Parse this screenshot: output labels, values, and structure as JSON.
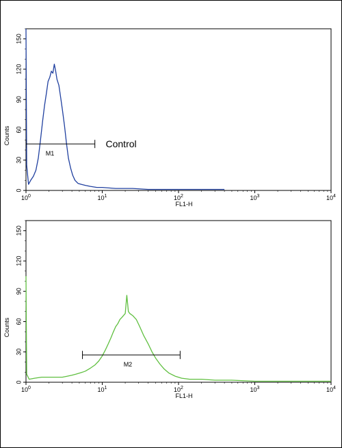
{
  "chart_data": [
    {
      "type": "line",
      "id": "top",
      "title": "",
      "xlabel": "FL1-H",
      "ylabel": "Counts",
      "x_scale": "log",
      "xlim": [
        1,
        10000
      ],
      "ylim": [
        0,
        160
      ],
      "y_ticks": [
        0,
        30,
        60,
        90,
        120,
        150
      ],
      "x_ticks": [
        {
          "value": 1,
          "base": "10",
          "exp": "0"
        },
        {
          "value": 10,
          "base": "10",
          "exp": "1"
        },
        {
          "value": 100,
          "base": "10",
          "exp": "2"
        },
        {
          "value": 1000,
          "base": "10",
          "exp": "3"
        },
        {
          "value": 10000,
          "base": "10",
          "exp": "4"
        }
      ],
      "series": [
        {
          "color": "#1f3f9f",
          "points": [
            [
              1.0,
              165
            ],
            [
              1.02,
              25
            ],
            [
              1.08,
              6
            ],
            [
              1.15,
              10
            ],
            [
              1.25,
              14
            ],
            [
              1.35,
              20
            ],
            [
              1.45,
              32
            ],
            [
              1.55,
              50
            ],
            [
              1.65,
              68
            ],
            [
              1.75,
              84
            ],
            [
              1.85,
              96
            ],
            [
              1.95,
              108
            ],
            [
              2.05,
              112
            ],
            [
              2.15,
              118
            ],
            [
              2.25,
              116
            ],
            [
              2.35,
              125
            ],
            [
              2.45,
              118
            ],
            [
              2.55,
              110
            ],
            [
              2.7,
              104
            ],
            [
              2.85,
              92
            ],
            [
              3.0,
              80
            ],
            [
              3.2,
              64
            ],
            [
              3.4,
              46
            ],
            [
              3.6,
              32
            ],
            [
              3.85,
              22
            ],
            [
              4.1,
              15
            ],
            [
              4.4,
              10
            ],
            [
              4.8,
              7
            ],
            [
              5.3,
              6
            ],
            [
              6.0,
              5
            ],
            [
              7.0,
              4
            ],
            [
              8.5,
              3
            ],
            [
              10,
              3
            ],
            [
              15,
              2
            ],
            [
              25,
              2
            ],
            [
              40,
              1
            ],
            [
              60,
              1
            ],
            [
              100,
              1
            ],
            [
              200,
              1
            ],
            [
              400,
              1
            ]
          ]
        }
      ],
      "gates": [
        {
          "label": "M1",
          "from": 1.0,
          "to": 8.0,
          "level": 46
        }
      ],
      "annotations": [
        {
          "text": "Control",
          "x": 10,
          "y": 46
        }
      ]
    },
    {
      "type": "line",
      "id": "bottom",
      "title": "",
      "xlabel": "FL1-H",
      "ylabel": "Counts",
      "x_scale": "log",
      "xlim": [
        1,
        10000
      ],
      "ylim": [
        0,
        160
      ],
      "y_ticks": [
        0,
        30,
        60,
        90,
        120,
        150
      ],
      "x_ticks": [
        {
          "value": 1,
          "base": "10",
          "exp": "0"
        },
        {
          "value": 10,
          "base": "10",
          "exp": "1"
        },
        {
          "value": 100,
          "base": "10",
          "exp": "2"
        },
        {
          "value": 1000,
          "base": "10",
          "exp": "3"
        },
        {
          "value": 10000,
          "base": "10",
          "exp": "4"
        }
      ],
      "series": [
        {
          "color": "#5fbf3f",
          "points": [
            [
              1.0,
              105
            ],
            [
              1.02,
              8
            ],
            [
              1.1,
              3
            ],
            [
              1.3,
              4
            ],
            [
              1.6,
              5
            ],
            [
              2,
              5
            ],
            [
              2.5,
              5
            ],
            [
              3,
              5
            ],
            [
              3.5,
              6
            ],
            [
              4,
              7
            ],
            [
              4.5,
              8
            ],
            [
              5,
              9
            ],
            [
              5.5,
              10
            ],
            [
              6,
              11
            ],
            [
              7,
              14
            ],
            [
              8,
              17
            ],
            [
              9,
              21
            ],
            [
              10,
              26
            ],
            [
              11,
              32
            ],
            [
              12,
              38
            ],
            [
              13,
              44
            ],
            [
              14,
              50
            ],
            [
              15,
              55
            ],
            [
              16,
              58
            ],
            [
              17,
              62
            ],
            [
              18,
              64
            ],
            [
              19,
              66
            ],
            [
              20,
              68
            ],
            [
              21,
              86
            ],
            [
              22,
              70
            ],
            [
              23,
              68
            ],
            [
              25,
              66
            ],
            [
              28,
              62
            ],
            [
              31,
              55
            ],
            [
              35,
              46
            ],
            [
              40,
              38
            ],
            [
              45,
              30
            ],
            [
              50,
              24
            ],
            [
              57,
              18
            ],
            [
              65,
              13
            ],
            [
              75,
              9
            ],
            [
              90,
              6
            ],
            [
              110,
              4
            ],
            [
              140,
              3
            ],
            [
              200,
              3
            ],
            [
              300,
              2
            ],
            [
              500,
              2
            ],
            [
              1000,
              1
            ],
            [
              2000,
              1
            ],
            [
              5000,
              1
            ],
            [
              10000,
              1
            ]
          ]
        }
      ],
      "gates": [
        {
          "label": "M2",
          "from": 5.5,
          "to": 105,
          "level": 27
        }
      ]
    }
  ]
}
